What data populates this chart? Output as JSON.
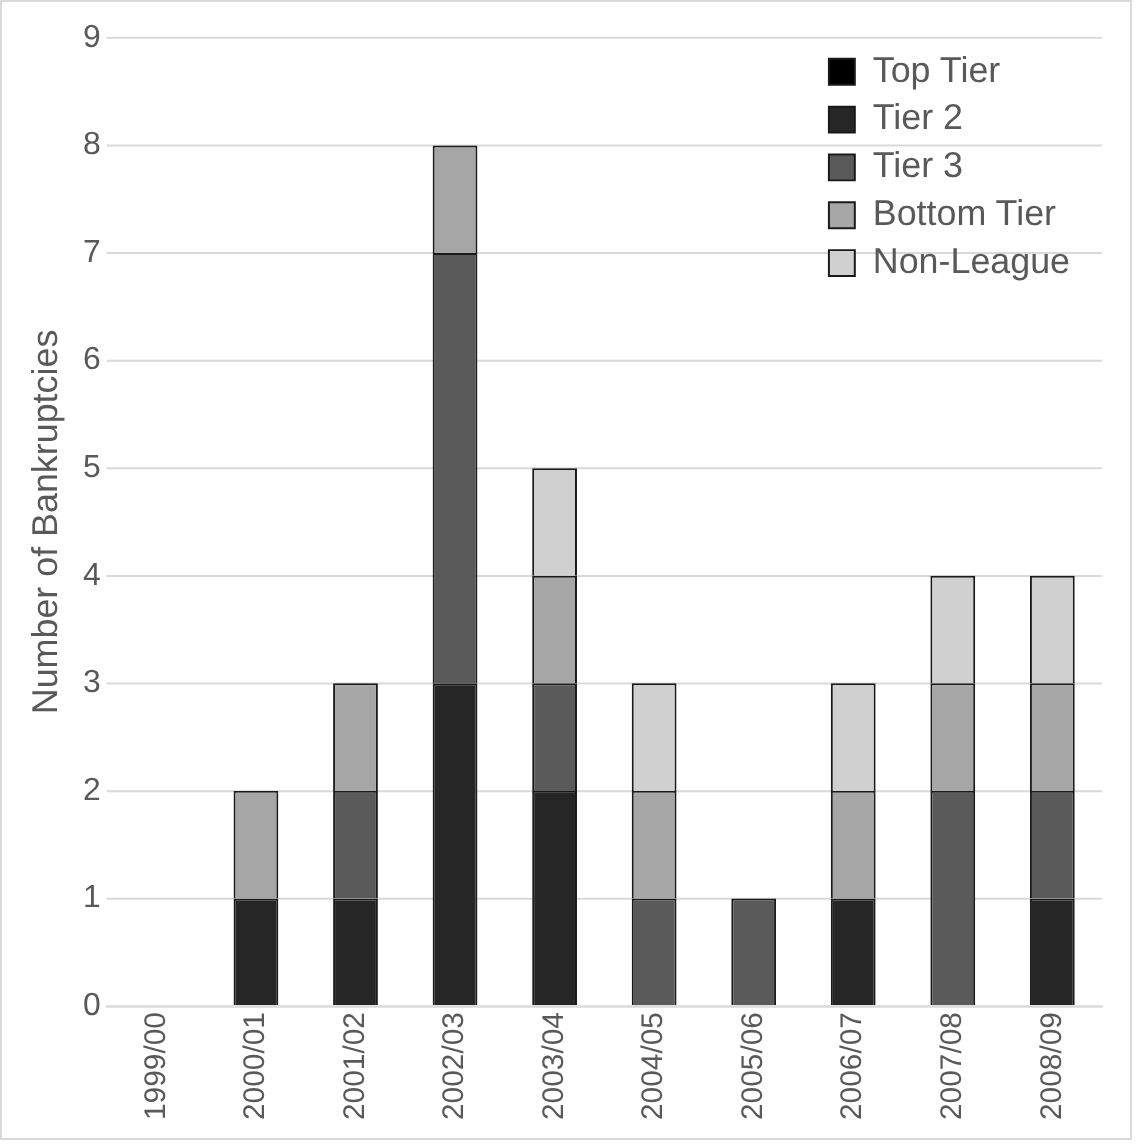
{
  "chart_data": {
    "type": "bar",
    "stacked": true,
    "ylabel": "Number of Bankruptcies",
    "categories": [
      "1999/00",
      "2000/01",
      "2001/02",
      "2002/03",
      "2003/04",
      "2004/05",
      "2005/06",
      "2006/07",
      "2007/08",
      "2008/09"
    ],
    "series": [
      {
        "name": "Top Tier",
        "color": "#000000",
        "values": [
          0,
          0,
          0,
          0,
          0,
          0,
          0,
          0,
          0,
          0
        ]
      },
      {
        "name": "Tier 2",
        "color": "#262626",
        "values": [
          0,
          1,
          1,
          3,
          2,
          0,
          0,
          1,
          0,
          1
        ]
      },
      {
        "name": "Tier 3",
        "color": "#5a5a5a",
        "values": [
          0,
          0,
          1,
          4,
          1,
          1,
          1,
          0,
          2,
          1
        ]
      },
      {
        "name": "Bottom Tier",
        "color": "#a6a6a6",
        "values": [
          0,
          1,
          1,
          1,
          1,
          1,
          0,
          1,
          1,
          1
        ]
      },
      {
        "name": "Non-League",
        "color": "#d0d0d0",
        "values": [
          0,
          0,
          0,
          0,
          1,
          1,
          0,
          1,
          1,
          1
        ]
      }
    ],
    "ylim": [
      0,
      9
    ],
    "yticks": [
      0,
      1,
      2,
      3,
      4,
      5,
      6,
      7,
      8,
      9
    ],
    "grid": "y",
    "legend": "top right"
  }
}
